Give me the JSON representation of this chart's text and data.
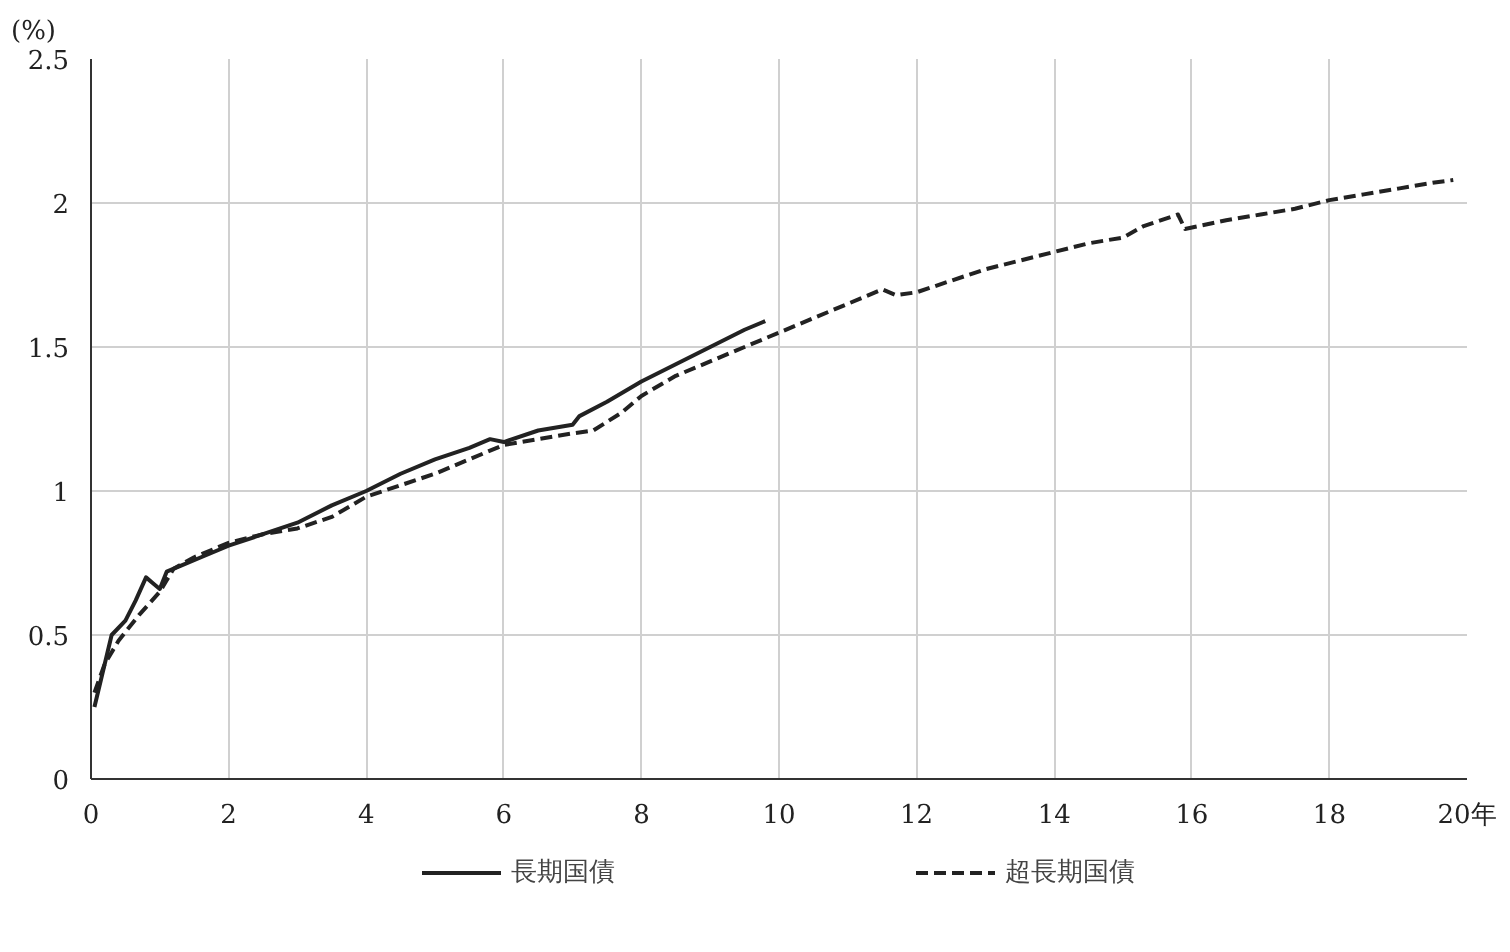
{
  "chart_data": {
    "type": "line",
    "ylabel": "(%)",
    "xlim": [
      0,
      20
    ],
    "xticks": [
      0,
      2,
      4,
      6,
      8,
      10,
      12,
      14,
      16,
      18,
      {
        "value": 20,
        "label": "20年"
      }
    ],
    "ylim": [
      0,
      2.5
    ],
    "yticks": [
      0,
      0.5,
      1,
      1.5,
      2,
      2.5
    ],
    "grid": true,
    "legend": "bottom",
    "series": [
      {
        "name": "長期国債",
        "color": "#222222",
        "line_style": "solid",
        "x": [
          0.05,
          0.15,
          0.3,
          0.5,
          0.65,
          0.8,
          0.9,
          1.0,
          1.1,
          1.3,
          1.6,
          2,
          2.5,
          3,
          3.5,
          4,
          4.5,
          5,
          5.5,
          5.8,
          6,
          6.5,
          7,
          7.1,
          7.5,
          8,
          8.5,
          9,
          9.5,
          9.8
        ],
        "values": [
          0.25,
          0.35,
          0.5,
          0.55,
          0.62,
          0.7,
          0.68,
          0.66,
          0.72,
          0.74,
          0.77,
          0.81,
          0.85,
          0.89,
          0.95,
          1.0,
          1.06,
          1.11,
          1.15,
          1.18,
          1.17,
          1.21,
          1.23,
          1.26,
          1.31,
          1.38,
          1.44,
          1.5,
          1.56,
          1.59
        ]
      },
      {
        "name": "超長期国債",
        "color": "#222222",
        "line_style": "dashed",
        "x": [
          0.05,
          0.2,
          0.4,
          0.7,
          1.0,
          1.1,
          1.2,
          1.5,
          2,
          2.5,
          3,
          3.5,
          4,
          4.5,
          5,
          5.5,
          6,
          6.5,
          7,
          7.3,
          7.7,
          8,
          8.5,
          9,
          9.5,
          10,
          10.5,
          11,
          11.5,
          11.7,
          12,
          12.5,
          13,
          13.5,
          14,
          14.5,
          15,
          15.3,
          15.8,
          15.9,
          16.5,
          17,
          17.5,
          18,
          18.5,
          19,
          19.5,
          19.8
        ],
        "values": [
          0.3,
          0.4,
          0.48,
          0.57,
          0.65,
          0.69,
          0.73,
          0.77,
          0.82,
          0.85,
          0.87,
          0.91,
          0.98,
          1.02,
          1.06,
          1.11,
          1.16,
          1.18,
          1.2,
          1.21,
          1.27,
          1.33,
          1.4,
          1.45,
          1.5,
          1.55,
          1.6,
          1.65,
          1.7,
          1.68,
          1.69,
          1.73,
          1.77,
          1.8,
          1.83,
          1.86,
          1.88,
          1.92,
          1.96,
          1.91,
          1.94,
          1.96,
          1.98,
          2.01,
          2.03,
          2.05,
          2.07,
          2.08
        ]
      }
    ]
  }
}
